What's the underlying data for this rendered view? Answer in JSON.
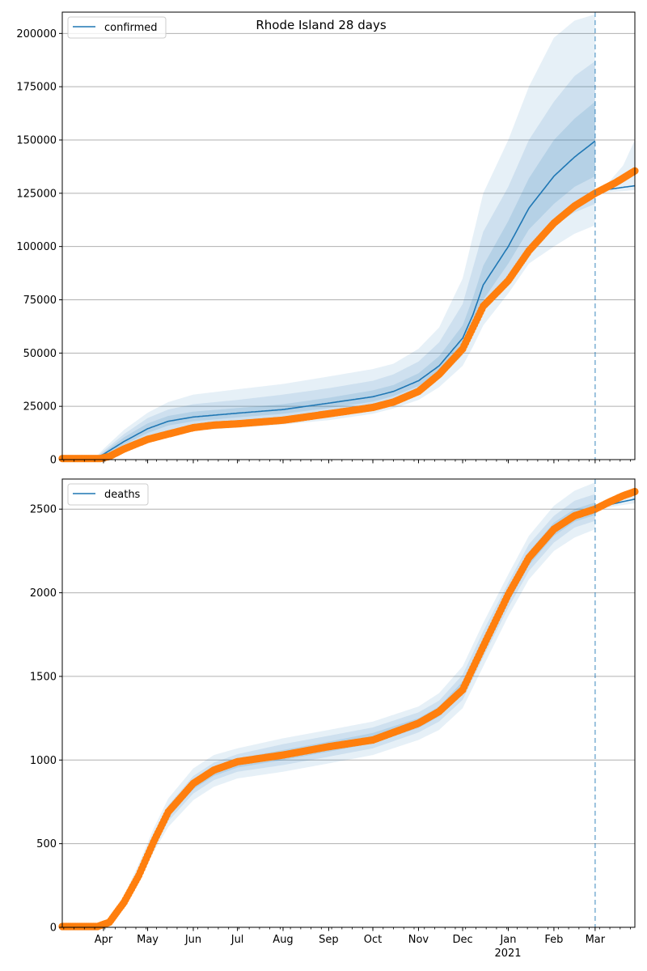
{
  "chart_data": [
    {
      "type": "line",
      "title": "Rhode Island 28 days",
      "xlabel": "",
      "ylabel": "",
      "x_start_date": "2020-03-04",
      "x_end_date": "2021-03-28",
      "ylim": [
        0,
        210000
      ],
      "yticks": [
        0,
        25000,
        50000,
        75000,
        100000,
        125000,
        150000,
        175000,
        200000
      ],
      "ytick_labels": [
        "0",
        "25000",
        "50000",
        "75000",
        "100000",
        "125000",
        "150000",
        "175000",
        "200000"
      ],
      "grid": "y",
      "legend": {
        "placement": "top-left",
        "entries": [
          {
            "label": "confirmed",
            "color": "#1f77b4"
          }
        ]
      },
      "forecast_start_date": "2021-03-01",
      "series": [
        {
          "name": "confirmed model median",
          "color": "#1f77b4",
          "dates": [
            "2020-03-04",
            "2020-03-25",
            "2020-04-01",
            "2020-04-15",
            "2020-05-01",
            "2020-05-15",
            "2020-06-01",
            "2020-07-01",
            "2020-08-01",
            "2020-09-01",
            "2020-10-01",
            "2020-10-15",
            "2020-11-01",
            "2020-11-15",
            "2020-12-01",
            "2020-12-08",
            "2020-12-15",
            "2021-01-01",
            "2021-01-15",
            "2021-02-01",
            "2021-02-15",
            "2021-03-01"
          ],
          "values": [
            0,
            0,
            2500,
            8500,
            14500,
            18000,
            20000,
            21800,
            23500,
            26500,
            29500,
            32000,
            37000,
            44000,
            57000,
            68000,
            82000,
            100000,
            118000,
            133000,
            142000,
            149500
          ]
        },
        {
          "name": "confirmed forecast median",
          "color": "#1f77b4",
          "dates": [
            "2021-03-01",
            "2021-03-10",
            "2021-03-20",
            "2021-03-28"
          ],
          "values": [
            125500,
            126800,
            127800,
            128500
          ]
        },
        {
          "name": "confirmed observed",
          "color": "#ff7f0e",
          "marker": "circle",
          "dates": [
            "2020-03-04",
            "2020-03-30",
            "2020-04-05",
            "2020-04-15",
            "2020-05-01",
            "2020-05-15",
            "2020-06-01",
            "2020-06-15",
            "2020-07-01",
            "2020-08-01",
            "2020-09-01",
            "2020-10-01",
            "2020-10-15",
            "2020-11-01",
            "2020-11-15",
            "2020-12-01",
            "2020-12-08",
            "2020-12-15",
            "2021-01-01",
            "2021-01-15",
            "2021-02-01",
            "2021-02-15",
            "2021-03-01",
            "2021-03-15",
            "2021-03-28"
          ],
          "values": [
            500,
            500,
            1500,
            5000,
            9500,
            12000,
            15000,
            16200,
            16800,
            18500,
            21500,
            24500,
            27000,
            32000,
            40000,
            52000,
            62000,
            72000,
            84000,
            98000,
            111000,
            119000,
            125000,
            130000,
            135500
          ]
        }
      ],
      "bands": [
        {
          "name": "outer band",
          "color": "#1f77b4",
          "opacity": 0.11,
          "dates": [
            "2020-03-25",
            "2020-04-01",
            "2020-04-15",
            "2020-05-01",
            "2020-05-15",
            "2020-06-01",
            "2020-07-01",
            "2020-08-01",
            "2020-09-01",
            "2020-10-01",
            "2020-10-15",
            "2020-11-01",
            "2020-11-15",
            "2020-12-01",
            "2020-12-08",
            "2020-12-15",
            "2021-01-01",
            "2021-01-15",
            "2021-02-01",
            "2021-02-15",
            "2021-03-01"
          ],
          "low": [
            0,
            500,
            4000,
            8500,
            11500,
            13500,
            15000,
            16500,
            18500,
            21500,
            24000,
            28000,
            34000,
            44000,
            53000,
            63000,
            78000,
            92000,
            100000,
            106000,
            110000
          ],
          "high": [
            0,
            5000,
            14000,
            22000,
            27000,
            30500,
            33000,
            35500,
            39000,
            42500,
            45000,
            52000,
            62000,
            85000,
            105000,
            125000,
            150000,
            175000,
            198000,
            206000,
            209000
          ]
        },
        {
          "name": "middle band",
          "color": "#1f77b4",
          "opacity": 0.12,
          "dates": [
            "2020-03-25",
            "2020-04-01",
            "2020-04-15",
            "2020-05-01",
            "2020-05-15",
            "2020-06-01",
            "2020-07-01",
            "2020-08-01",
            "2020-09-01",
            "2020-10-01",
            "2020-10-15",
            "2020-11-01",
            "2020-11-15",
            "2020-12-01",
            "2020-12-08",
            "2020-12-15",
            "2021-01-01",
            "2021-01-15",
            "2021-02-01",
            "2021-02-15",
            "2021-03-01"
          ],
          "low": [
            0,
            1000,
            5500,
            10500,
            13500,
            15500,
            17500,
            19500,
            22000,
            25000,
            27500,
            32000,
            38000,
            49000,
            59000,
            70000,
            86000,
            100000,
            110000,
            116000,
            120000
          ],
          "high": [
            0,
            4000,
            12000,
            19500,
            23500,
            26000,
            28000,
            30500,
            33500,
            37000,
            40000,
            46000,
            55000,
            73000,
            90000,
            107000,
            128000,
            150000,
            168000,
            180000,
            187000
          ]
        },
        {
          "name": "inner band",
          "color": "#1f77b4",
          "opacity": 0.14,
          "dates": [
            "2020-03-25",
            "2020-04-01",
            "2020-04-15",
            "2020-05-01",
            "2020-05-15",
            "2020-06-01",
            "2020-07-01",
            "2020-08-01",
            "2020-09-01",
            "2020-10-01",
            "2020-10-15",
            "2020-11-01",
            "2020-11-15",
            "2020-12-01",
            "2020-12-08",
            "2020-12-15",
            "2021-01-01",
            "2021-01-15",
            "2021-02-01",
            "2021-02-15",
            "2021-03-01"
          ],
          "low": [
            0,
            1800,
            7000,
            12500,
            16000,
            18000,
            19800,
            21500,
            24200,
            27200,
            29800,
            34500,
            41000,
            52500,
            63000,
            75000,
            92000,
            108000,
            120000,
            128000,
            133000
          ],
          "high": [
            0,
            3200,
            10500,
            17000,
            20500,
            22500,
            24200,
            26000,
            29000,
            32500,
            35000,
            40500,
            48500,
            63000,
            76000,
            91000,
            112000,
            132000,
            150000,
            160000,
            168000
          ]
        },
        {
          "name": "forecast band",
          "color": "#1f77b4",
          "opacity": 0.11,
          "dates": [
            "2021-03-01",
            "2021-03-10",
            "2021-03-20",
            "2021-03-28"
          ],
          "low": [
            125000,
            125500,
            126000,
            126500
          ],
          "high": [
            126000,
            130000,
            138000,
            150000
          ]
        }
      ]
    },
    {
      "type": "line",
      "title": "",
      "xlabel": "",
      "ylabel": "",
      "x_start_date": "2020-03-04",
      "x_end_date": "2021-03-28",
      "ylim": [
        0,
        2680
      ],
      "yticks": [
        0,
        500,
        1000,
        1500,
        2000,
        2500
      ],
      "ytick_labels": [
        "0",
        "500",
        "1000",
        "1500",
        "2000",
        "2500"
      ],
      "xtick_labels": [
        "Apr",
        "May",
        "Jun",
        "Jul",
        "Aug",
        "Sep",
        "Oct",
        "Nov",
        "Dec",
        "Jan",
        "Feb",
        "Mar"
      ],
      "xtick_dates": [
        "2020-04-01",
        "2020-05-01",
        "2020-06-01",
        "2020-07-01",
        "2020-08-01",
        "2020-09-01",
        "2020-10-01",
        "2020-11-01",
        "2020-12-01",
        "2021-01-01",
        "2021-02-01",
        "2021-03-01"
      ],
      "x_year_label": "2021",
      "grid": "y",
      "legend": {
        "placement": "top-left",
        "entries": [
          {
            "label": "deaths",
            "color": "#1f77b4"
          }
        ]
      },
      "forecast_start_date": "2021-03-01",
      "series": [
        {
          "name": "deaths model median",
          "color": "#1f77b4",
          "dates": [
            "2020-03-04",
            "2020-03-28",
            "2020-04-05",
            "2020-04-15",
            "2020-04-25",
            "2020-05-05",
            "2020-05-15",
            "2020-06-01",
            "2020-06-15",
            "2020-07-01",
            "2020-08-01",
            "2020-09-01",
            "2020-10-01",
            "2020-11-01",
            "2020-11-15",
            "2020-12-01",
            "2020-12-15",
            "2021-01-01",
            "2021-01-15",
            "2021-02-01",
            "2021-02-15",
            "2021-03-01"
          ],
          "values": [
            0,
            0,
            40,
            150,
            320,
            520,
            680,
            850,
            930,
            985,
            1030,
            1080,
            1130,
            1220,
            1290,
            1430,
            1690,
            1980,
            2200,
            2380,
            2460,
            2500
          ]
        },
        {
          "name": "deaths forecast median",
          "color": "#1f77b4",
          "dates": [
            "2021-03-01",
            "2021-03-10",
            "2021-03-20",
            "2021-03-28"
          ],
          "values": [
            2500,
            2525,
            2545,
            2560
          ]
        },
        {
          "name": "deaths observed",
          "color": "#ff7f0e",
          "marker": "circle",
          "dates": [
            "2020-03-04",
            "2020-03-28",
            "2020-04-05",
            "2020-04-15",
            "2020-04-25",
            "2020-05-05",
            "2020-05-15",
            "2020-06-01",
            "2020-06-15",
            "2020-07-01",
            "2020-08-01",
            "2020-09-01",
            "2020-10-01",
            "2020-11-01",
            "2020-11-15",
            "2020-12-01",
            "2020-12-15",
            "2021-01-01",
            "2021-01-15",
            "2021-02-01",
            "2021-02-15",
            "2021-03-01",
            "2021-03-10",
            "2021-03-20",
            "2021-03-28"
          ],
          "values": [
            5,
            5,
            30,
            150,
            310,
            510,
            690,
            860,
            940,
            990,
            1030,
            1080,
            1120,
            1220,
            1290,
            1420,
            1680,
            1990,
            2210,
            2380,
            2460,
            2500,
            2540,
            2580,
            2605
          ]
        }
      ],
      "bands": [
        {
          "name": "outer band",
          "color": "#1f77b4",
          "opacity": 0.11,
          "dates": [
            "2020-03-28",
            "2020-04-05",
            "2020-04-15",
            "2020-04-25",
            "2020-05-05",
            "2020-05-15",
            "2020-06-01",
            "2020-06-15",
            "2020-07-01",
            "2020-08-01",
            "2020-09-01",
            "2020-10-01",
            "2020-11-01",
            "2020-11-15",
            "2020-12-01",
            "2020-12-15",
            "2021-01-01",
            "2021-01-15",
            "2021-02-01",
            "2021-02-15",
            "2021-03-01"
          ],
          "low": [
            0,
            30,
            120,
            270,
            450,
            600,
            760,
            840,
            890,
            930,
            980,
            1030,
            1120,
            1180,
            1310,
            1560,
            1860,
            2080,
            2250,
            2330,
            2380
          ],
          "high": [
            0,
            55,
            190,
            380,
            590,
            770,
            950,
            1030,
            1070,
            1130,
            1180,
            1230,
            1320,
            1400,
            1560,
            1820,
            2110,
            2340,
            2520,
            2610,
            2660
          ]
        },
        {
          "name": "middle band",
          "color": "#1f77b4",
          "opacity": 0.12,
          "dates": [
            "2020-03-28",
            "2020-04-05",
            "2020-04-15",
            "2020-04-25",
            "2020-05-05",
            "2020-05-15",
            "2020-06-01",
            "2020-06-15",
            "2020-07-01",
            "2020-08-01",
            "2020-09-01",
            "2020-10-01",
            "2020-11-01",
            "2020-11-15",
            "2020-12-01",
            "2020-12-15",
            "2021-01-01",
            "2021-01-15",
            "2021-02-01",
            "2021-02-15",
            "2021-03-01"
          ],
          "low": [
            0,
            35,
            135,
            295,
            480,
            635,
            800,
            880,
            930,
            970,
            1020,
            1070,
            1165,
            1230,
            1360,
            1615,
            1910,
            2130,
            2300,
            2390,
            2430
          ],
          "high": [
            0,
            48,
            170,
            350,
            560,
            730,
            905,
            985,
            1035,
            1095,
            1145,
            1195,
            1285,
            1355,
            1510,
            1770,
            2060,
            2290,
            2460,
            2550,
            2590
          ]
        },
        {
          "name": "inner band",
          "color": "#1f77b4",
          "opacity": 0.14,
          "dates": [
            "2020-03-28",
            "2020-04-05",
            "2020-04-15",
            "2020-04-25",
            "2020-05-05",
            "2020-05-15",
            "2020-06-01",
            "2020-06-15",
            "2020-07-01",
            "2020-08-01",
            "2020-09-01",
            "2020-10-01",
            "2020-11-01",
            "2020-11-15",
            "2020-12-01",
            "2020-12-15",
            "2021-01-01",
            "2021-01-15",
            "2021-02-01",
            "2021-02-15",
            "2021-03-01"
          ],
          "low": [
            0,
            38,
            143,
            310,
            500,
            660,
            825,
            905,
            955,
            1000,
            1050,
            1100,
            1192,
            1260,
            1395,
            1650,
            1945,
            2165,
            2340,
            2425,
            2465
          ],
          "high": [
            0,
            44,
            160,
            335,
            540,
            705,
            880,
            960,
            1010,
            1060,
            1110,
            1162,
            1250,
            1320,
            1470,
            1730,
            2020,
            2245,
            2420,
            2500,
            2540
          ]
        },
        {
          "name": "forecast band",
          "color": "#1f77b4",
          "opacity": 0.11,
          "dates": [
            "2021-03-01",
            "2021-03-10",
            "2021-03-20",
            "2021-03-28"
          ],
          "low": [
            2495,
            2510,
            2525,
            2535
          ],
          "high": [
            2505,
            2545,
            2575,
            2600
          ]
        }
      ]
    }
  ]
}
